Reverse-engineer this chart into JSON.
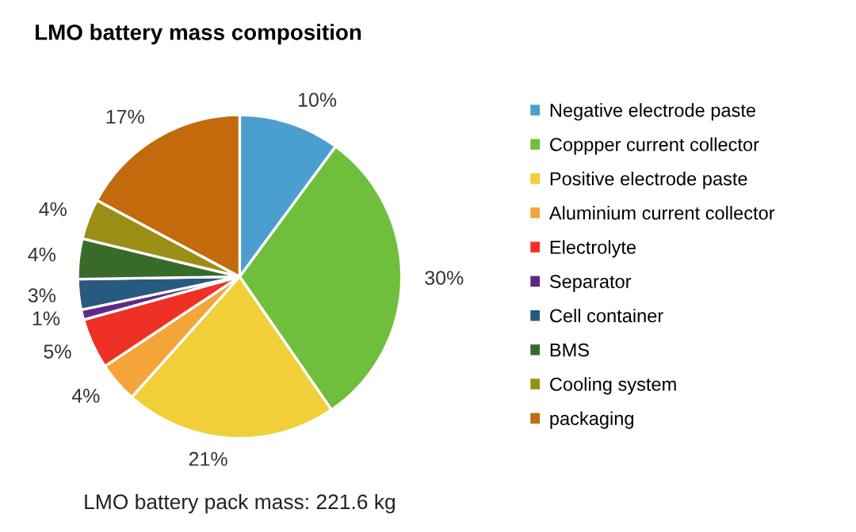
{
  "chart_data": {
    "type": "pie",
    "title": "LMO battery mass composition",
    "categories": [
      "Negative electrode paste",
      "Coppper current collector",
      "Positive electrode paste",
      "Aluminium current collector",
      "Electrolyte",
      "Separator",
      "Cell container",
      "BMS",
      "Cooling system",
      "packaging"
    ],
    "values": [
      10,
      30,
      21,
      4,
      5,
      1,
      3,
      4,
      4,
      17
    ],
    "colors": [
      "#4a9fd0",
      "#6fbf3c",
      "#f0cf38",
      "#f5a43a",
      "#ee3124",
      "#5e2a84",
      "#285a80",
      "#386b2a",
      "#9a8f14",
      "#c26a0c"
    ],
    "value_labels": [
      "10%",
      "30%",
      "21%",
      "4%",
      "5%",
      "1%",
      "3%",
      "4%",
      "4%",
      "17%"
    ],
    "annotations": [
      "LMO battery pack mass: 221.6 kg"
    ],
    "legend": "right"
  }
}
